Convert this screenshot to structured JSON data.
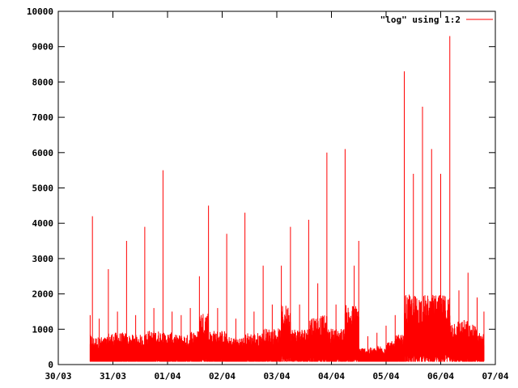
{
  "chart_data": {
    "type": "line",
    "title": "",
    "xlabel": "",
    "ylabel": "",
    "ylim": [
      0,
      10000
    ],
    "xlim": [
      "30/03",
      "07/04"
    ],
    "grid": false,
    "legend_position": "top-right",
    "x_ticks": [
      "30/03",
      "31/03",
      "01/04",
      "02/04",
      "03/04",
      "04/04",
      "05/04",
      "06/04",
      "07/04"
    ],
    "y_ticks": [
      0,
      1000,
      2000,
      3000,
      4000,
      5000,
      6000,
      7000,
      8000,
      9000,
      10000
    ],
    "series": [
      {
        "name": "\"log\" using 1:2",
        "color": "#ff0000",
        "x": [
          "30/03 14:00",
          "30/03 15:00",
          "30/03 18:00",
          "30/03 22:00",
          "31/03 02:00",
          "31/03 06:00",
          "31/03 10:00",
          "31/03 14:00",
          "31/03 18:00",
          "31/03 22:00",
          "01/04 02:00",
          "01/04 06:00",
          "01/04 10:00",
          "01/04 14:00",
          "01/04 18:00",
          "01/04 22:00",
          "02/04 02:00",
          "02/04 06:00",
          "02/04 10:00",
          "02/04 14:00",
          "02/04 18:00",
          "02/04 22:00",
          "03/04 02:00",
          "03/04 06:00",
          "03/04 10:00",
          "03/04 14:00",
          "03/04 18:00",
          "03/04 22:00",
          "04/04 02:00",
          "04/04 06:00",
          "04/04 10:00",
          "04/04 12:00",
          "04/04 16:00",
          "04/04 20:00",
          "05/04 00:00",
          "05/04 04:00",
          "05/04 08:00",
          "05/04 12:00",
          "05/04 16:00",
          "05/04 20:00",
          "06/04 00:00",
          "06/04 04:00",
          "06/04 08:00",
          "06/04 12:00",
          "06/04 16:00",
          "06/04 19:00"
        ],
        "values": [
          1400,
          4200,
          1300,
          2700,
          1500,
          3500,
          1400,
          3900,
          1600,
          5500,
          1500,
          1400,
          1600,
          2500,
          4500,
          1600,
          3700,
          1300,
          4300,
          1500,
          2800,
          1700,
          2800,
          3900,
          1700,
          4100,
          2300,
          6000,
          1700,
          6100,
          2800,
          3500,
          800,
          900,
          1100,
          1400,
          8300,
          5400,
          7300,
          6100,
          5400,
          9300,
          2100,
          2600,
          1900,
          1500
        ]
      }
    ]
  }
}
